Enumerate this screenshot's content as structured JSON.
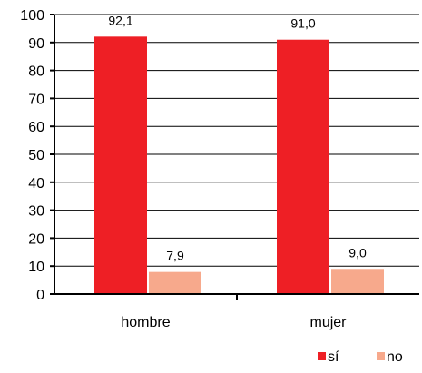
{
  "chart_data": {
    "type": "bar",
    "categories": [
      "hombre",
      "mujer"
    ],
    "series": [
      {
        "name": "sí",
        "values": [
          92.1,
          91.0
        ],
        "labels": [
          "92,1",
          "91,0"
        ],
        "color": "#ee1f25"
      },
      {
        "name": "no",
        "values": [
          7.9,
          9.0
        ],
        "labels": [
          "7,9",
          "9,0"
        ],
        "color": "#f7a98c"
      }
    ],
    "ylim": [
      0,
      100
    ],
    "yticks": [
      0,
      10,
      20,
      30,
      40,
      50,
      60,
      70,
      80,
      90,
      100
    ],
    "grid": true,
    "legend": "bottom-right",
    "title": "",
    "xlabel": "",
    "ylabel": ""
  }
}
